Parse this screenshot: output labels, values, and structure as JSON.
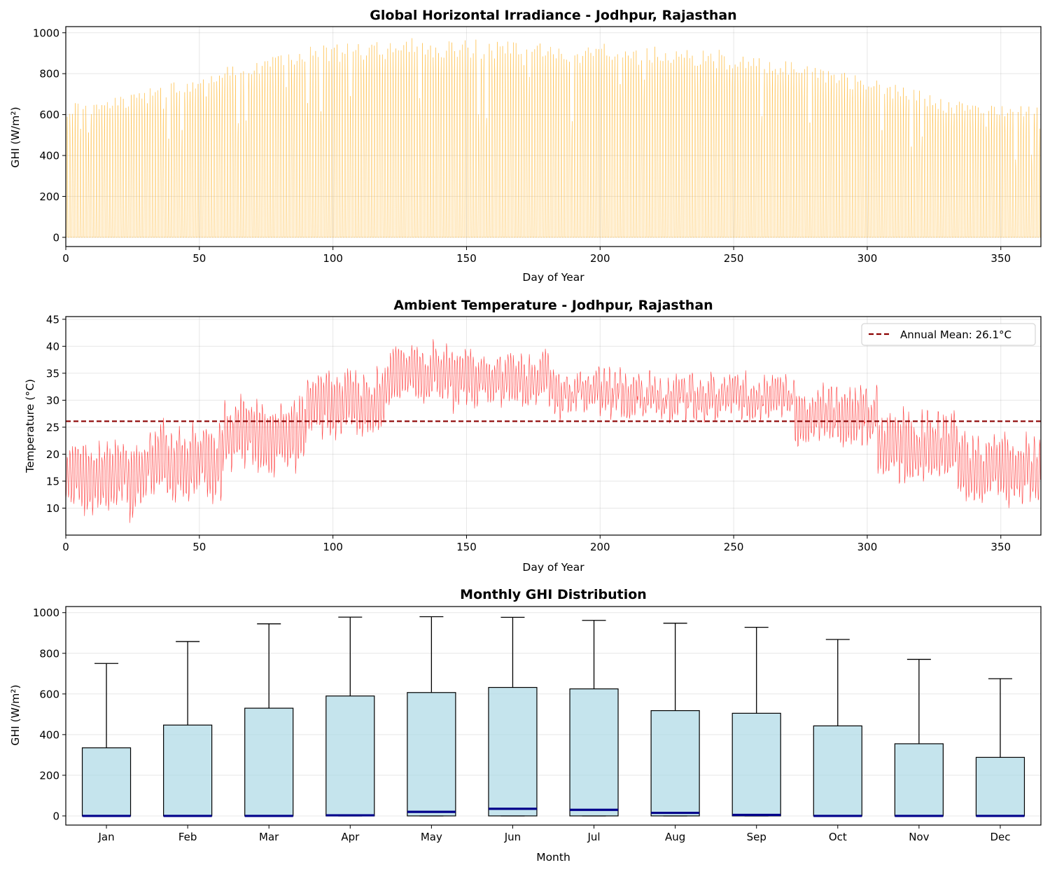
{
  "chart_data": [
    {
      "type": "line",
      "title": "Global Horizontal Irradiance - Jodhpur, Rajasthan",
      "xlabel": "Day of Year",
      "ylabel": "GHI (W/m²)",
      "xlim": [
        0,
        365
      ],
      "ylim": [
        -45,
        1030
      ],
      "xticks": [
        0,
        50,
        100,
        150,
        200,
        250,
        300,
        350
      ],
      "yticks": [
        0,
        200,
        400,
        600,
        800,
        1000
      ],
      "grid": true,
      "series": [
        {
          "color": "#ffa500",
          "style": "hourly diurnal cycle",
          "daily_peak_envelope": {
            "day": [
              0,
              15,
              30,
              45,
              60,
              75,
              90,
              105,
              120,
              135,
              150,
              165,
              180,
              195,
              210,
              225,
              240,
              255,
              270,
              285,
              300,
              315,
              330,
              345,
              365
            ],
            "peak": [
              655,
              680,
              730,
              790,
              845,
              895,
              940,
              965,
              978,
              980,
              976,
              968,
              960,
              955,
              945,
              935,
              925,
              910,
              875,
              840,
              790,
              740,
              680,
              650,
              660
            ]
          }
        }
      ]
    },
    {
      "type": "line",
      "title": "Ambient Temperature - Jodhpur, Rajasthan",
      "xlabel": "Day of Year",
      "ylabel": "Temperature (°C)",
      "xlim": [
        0,
        365
      ],
      "ylim": [
        5,
        45.5
      ],
      "xticks": [
        0,
        50,
        100,
        150,
        200,
        250,
        300,
        350
      ],
      "yticks": [
        10,
        15,
        20,
        25,
        30,
        35,
        40,
        45
      ],
      "grid": true,
      "legend": {
        "location": "upper right",
        "label": "Annual Mean: 26.1°C"
      },
      "annual_mean": 26.1,
      "series": [
        {
          "color": "#ff0000",
          "style": "hourly, monthly step means with diurnal swing",
          "monthly_mean": [
            15.5,
            18.5,
            23.5,
            29.5,
            34.5,
            34.0,
            31.5,
            30.5,
            30.5,
            27.0,
            21.5,
            17.0
          ],
          "diurnal_amplitude": [
            5.5,
            5.5,
            5.0,
            5.0,
            4.5,
            4.0,
            3.0,
            3.0,
            3.0,
            4.5,
            5.0,
            5.0
          ]
        }
      ]
    },
    {
      "type": "box",
      "title": "Monthly GHI Distribution",
      "xlabel": "Month",
      "ylabel": "GHI (W/m²)",
      "ylim": [
        -45,
        1030
      ],
      "yticks": [
        0,
        200,
        400,
        600,
        800,
        1000
      ],
      "grid": true,
      "box_color": "#add8e6",
      "median_color": "#00008b",
      "categories": [
        "Jan",
        "Feb",
        "Mar",
        "Apr",
        "May",
        "Jun",
        "Jul",
        "Aug",
        "Sep",
        "Oct",
        "Nov",
        "Dec"
      ],
      "q1": [
        0,
        0,
        0,
        0,
        0,
        0,
        0,
        0,
        0,
        0,
        0,
        0
      ],
      "median": [
        0,
        0,
        0,
        3,
        20,
        35,
        30,
        15,
        5,
        0,
        0,
        0
      ],
      "q3": [
        335,
        447,
        530,
        590,
        607,
        632,
        625,
        518,
        505,
        443,
        355,
        288
      ],
      "whisker_low": [
        0,
        0,
        0,
        0,
        0,
        0,
        0,
        0,
        0,
        0,
        0,
        0
      ],
      "whisker_high": [
        750,
        858,
        945,
        978,
        980,
        977,
        962,
        948,
        928,
        868,
        770,
        675
      ]
    }
  ]
}
